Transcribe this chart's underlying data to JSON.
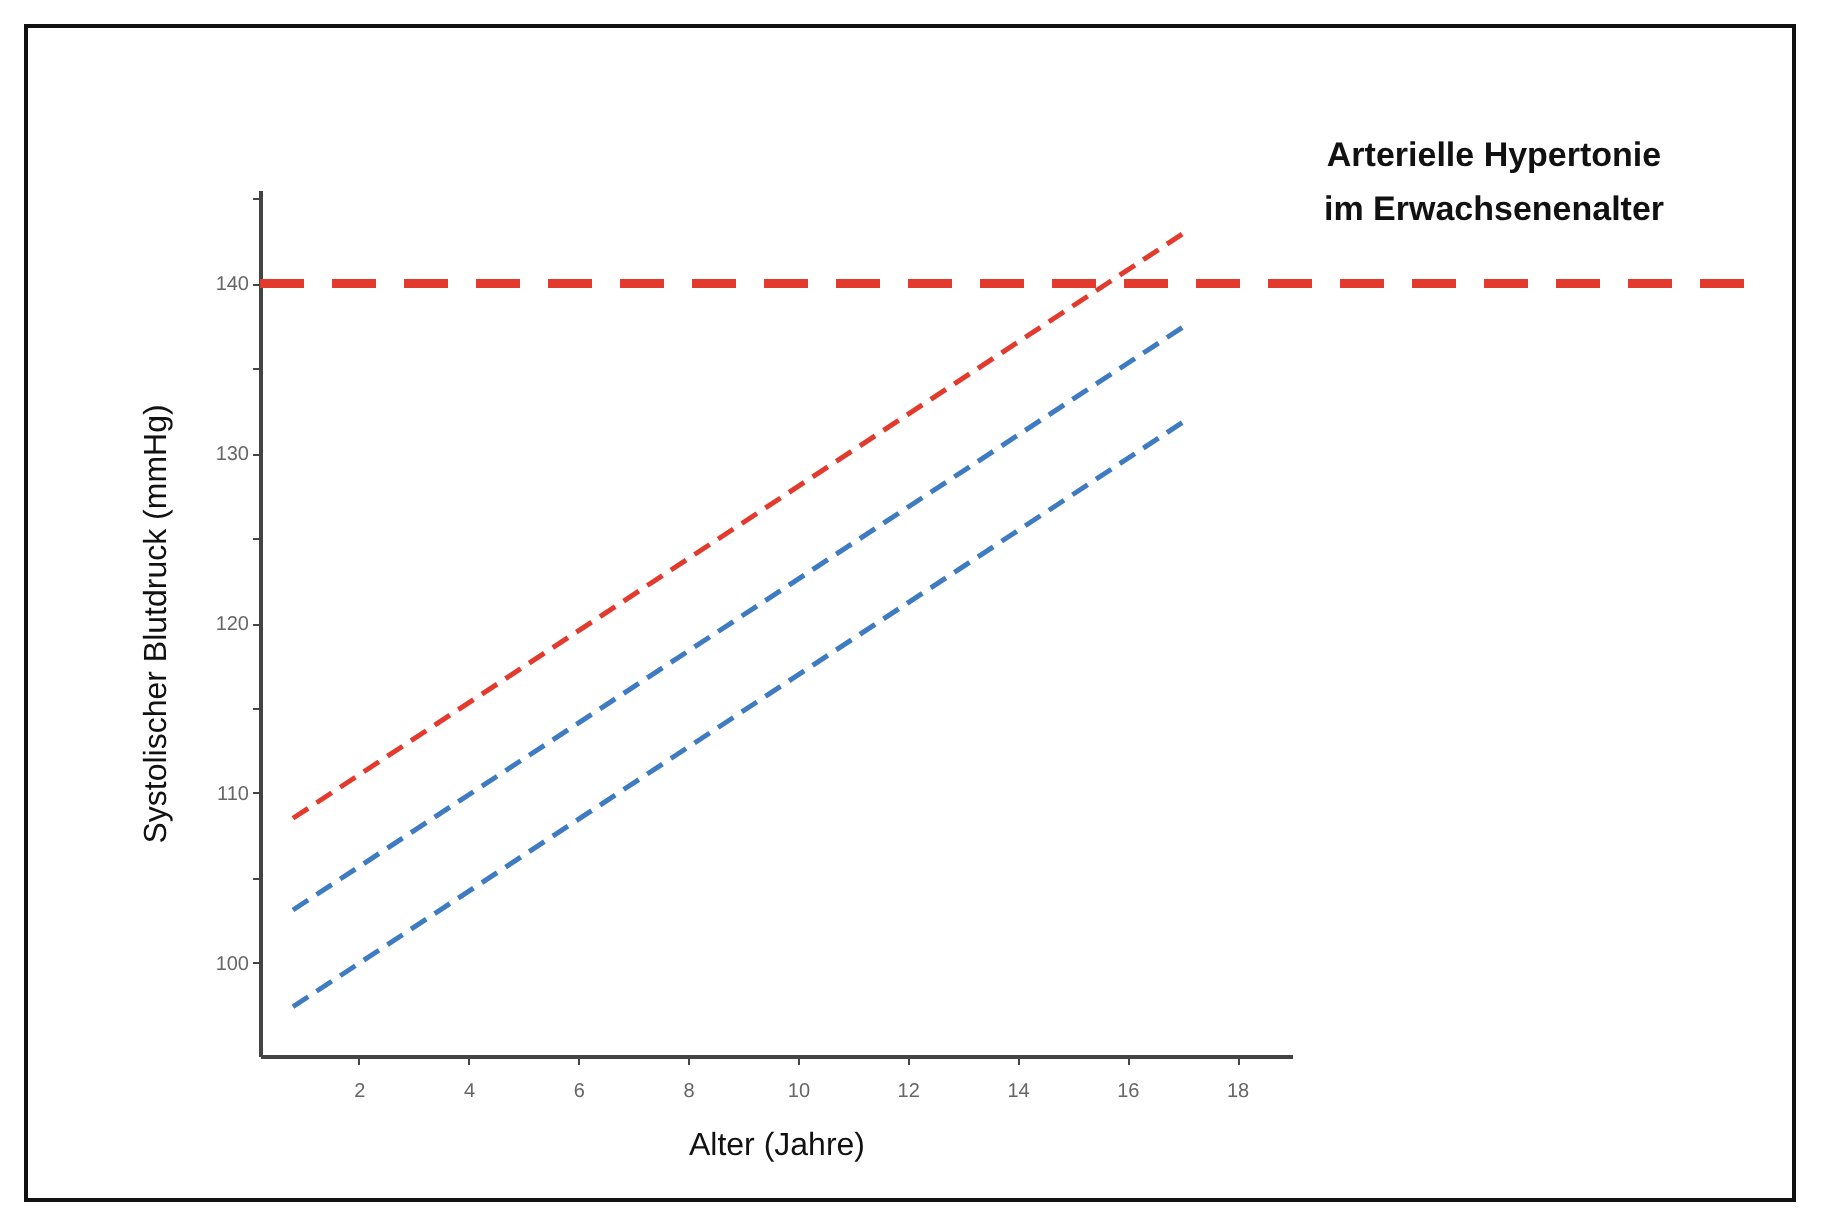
{
  "chart_data": {
    "type": "line",
    "xlabel": "Alter (Jahre)",
    "ylabel": "Systolischer Blutdruck (mmHg)",
    "line_style": "dashed",
    "marker": "none",
    "grid": false,
    "xlim": [
      0.2,
      19
    ],
    "xticks": [
      2,
      4,
      6,
      8,
      10,
      12,
      14,
      16,
      18
    ],
    "ylim": [
      94.5,
      145.5
    ],
    "yticks": [
      100,
      {
        "value": 105,
        "label": null
      },
      110,
      {
        "value": 115,
        "label": null
      },
      120,
      {
        "value": 125,
        "label": null
      },
      130,
      {
        "value": 135,
        "label": null
      },
      140,
      {
        "value": 145,
        "label": null
      }
    ],
    "x": [
      0.8,
      17
    ],
    "series": [
      {
        "color": "#e23b2e",
        "values": [
          108.5,
          142.9
        ]
      },
      {
        "color": "#3f7bc0",
        "values": [
          103.1,
          137.4
        ]
      },
      {
        "color": "#3f7bc0",
        "values": [
          97.4,
          131.8
        ]
      }
    ],
    "ref_lines": [
      {
        "axis": "y",
        "value": 140,
        "label": "Arterielle Hypertonie im Erwachsenenalter",
        "color": "#e23b2e",
        "line_style": "dashed"
      }
    ]
  }
}
